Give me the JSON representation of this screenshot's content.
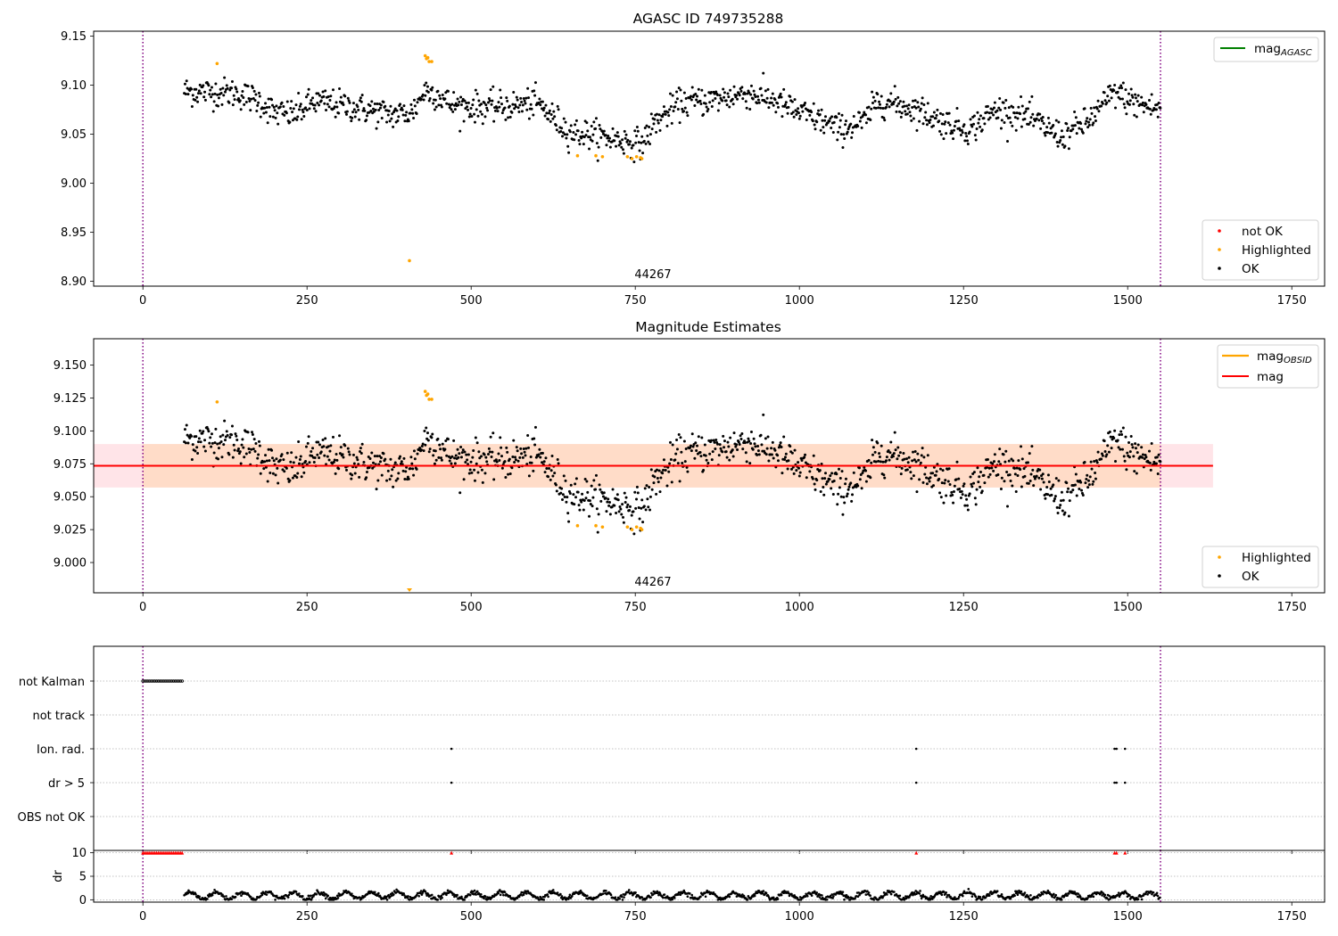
{
  "colors": {
    "ok": "#000000",
    "not_ok": "#ff0000",
    "highlighted": "#ffa500",
    "mag_agasc": "#008000",
    "mag_obsid": "#ffa500",
    "mag": "#ff0000",
    "obs_boundary": "#800080",
    "band_outer": "#ffe4e8",
    "band_inner": "#ffdcc8"
  },
  "panels": {
    "top": {
      "title": "AGASC ID 749735288",
      "obsid_label": "44267",
      "legend_top": [
        "mag_{AGASC}"
      ],
      "legend_bottom": [
        "not OK",
        "Highlighted",
        "OK"
      ]
    },
    "middle": {
      "title": "Magnitude Estimates",
      "obsid_label": "44267",
      "legend_top": [
        "mag_{OBSID}",
        "mag"
      ],
      "legend_bottom": [
        "Highlighted",
        "OK"
      ]
    },
    "bottom": {
      "flag_labels": [
        "not Kalman",
        "not track",
        "Ion. rad.",
        "dr > 5",
        "OBS not OK"
      ],
      "dr_ylabel": "dr"
    }
  },
  "chart_data": [
    {
      "type": "scatter",
      "title": "AGASC ID 749735288",
      "xlim": [
        -75,
        1800
      ],
      "ylim": [
        8.895,
        9.155
      ],
      "x_ticks": [
        0,
        250,
        500,
        750,
        1000,
        1250,
        1500,
        1750
      ],
      "y_ticks": [
        8.9,
        8.95,
        9.0,
        9.05,
        9.1,
        9.15
      ],
      "obsid_bounds": [
        0,
        1550
      ],
      "obsid": "44267",
      "series": [
        {
          "name": "OK",
          "x_range": [
            63,
            1550
          ],
          "trend": [
            [
              63,
              9.094
            ],
            [
              100,
              9.093
            ],
            [
              140,
              9.092
            ],
            [
              175,
              9.085
            ],
            [
              200,
              9.072
            ],
            [
              230,
              9.07
            ],
            [
              260,
              9.083
            ],
            [
              300,
              9.08
            ],
            [
              340,
              9.075
            ],
            [
              380,
              9.07
            ],
            [
              410,
              9.072
            ],
            [
              430,
              9.095
            ],
            [
              450,
              9.09
            ],
            [
              470,
              9.08
            ],
            [
              500,
              9.078
            ],
            [
              550,
              9.078
            ],
            [
              600,
              9.082
            ],
            [
              620,
              9.07
            ],
            [
              650,
              9.052
            ],
            [
              680,
              9.05
            ],
            [
              720,
              9.045
            ],
            [
              760,
              9.04
            ],
            [
              780,
              9.062
            ],
            [
              820,
              9.082
            ],
            [
              870,
              9.085
            ],
            [
              920,
              9.092
            ],
            [
              960,
              9.085
            ],
            [
              1000,
              9.072
            ],
            [
              1030,
              9.065
            ],
            [
              1060,
              9.055
            ],
            [
              1100,
              9.063
            ],
            [
              1120,
              9.085
            ],
            [
              1150,
              9.08
            ],
            [
              1180,
              9.075
            ],
            [
              1220,
              9.062
            ],
            [
              1260,
              9.055
            ],
            [
              1300,
              9.075
            ],
            [
              1340,
              9.07
            ],
            [
              1380,
              9.055
            ],
            [
              1400,
              9.048
            ],
            [
              1440,
              9.063
            ],
            [
              1480,
              9.093
            ],
            [
              1510,
              9.082
            ],
            [
              1550,
              9.075
            ]
          ]
        },
        {
          "name": "Highlighted",
          "points": [
            [
              113,
              9.122
            ],
            [
              406,
              8.921
            ],
            [
              430,
              9.13
            ],
            [
              432,
              9.127
            ],
            [
              434,
              9.128
            ],
            [
              436,
              9.124
            ],
            [
              440,
              9.124
            ],
            [
              662,
              9.028
            ],
            [
              690,
              9.028
            ],
            [
              700,
              9.027
            ],
            [
              738,
              9.027
            ],
            [
              745,
              9.025
            ],
            [
              752,
              9.027
            ],
            [
              758,
              9.026
            ],
            [
              760,
              9.025
            ]
          ]
        },
        {
          "name": "not OK",
          "points": []
        }
      ]
    },
    {
      "type": "scatter",
      "title": "Magnitude Estimates",
      "xlim": [
        -75,
        1800
      ],
      "ylim": [
        8.977,
        9.17
      ],
      "x_ticks": [
        0,
        250,
        500,
        750,
        1000,
        1250,
        1500,
        1750
      ],
      "y_ticks": [
        9.0,
        9.025,
        9.05,
        9.075,
        9.1,
        9.125,
        9.15
      ],
      "obsid_bounds": [
        0,
        1550
      ],
      "obsid": "44267",
      "lines": {
        "mag": {
          "x": [
            -75,
            1630
          ],
          "y": 9.0735
        },
        "mag_obsid": {
          "x": [
            0,
            1550
          ],
          "y": 9.0735
        },
        "band_outer": {
          "x": [
            -75,
            1630
          ],
          "y": [
            9.057,
            9.09
          ]
        },
        "band_inner": {
          "x": [
            0,
            1550
          ],
          "y": [
            9.057,
            9.09
          ]
        }
      },
      "series": [
        {
          "name": "OK",
          "same_as": "panel 1 OK series"
        },
        {
          "name": "Highlighted",
          "points": [
            [
              113,
              9.122
            ],
            [
              406,
              8.978
            ],
            [
              430,
              9.13
            ],
            [
              432,
              9.127
            ],
            [
              434,
              9.128
            ],
            [
              436,
              9.124
            ],
            [
              440,
              9.124
            ],
            [
              662,
              9.028
            ],
            [
              690,
              9.028
            ],
            [
              700,
              9.027
            ],
            [
              738,
              9.027
            ],
            [
              745,
              9.025
            ],
            [
              752,
              9.027
            ],
            [
              758,
              9.026
            ],
            [
              760,
              9.025
            ]
          ]
        }
      ]
    },
    {
      "type": "scatter",
      "title": "",
      "xlim": [
        -75,
        1800
      ],
      "x_ticks": [
        0,
        250,
        500,
        750,
        1000,
        1250,
        1500,
        1750
      ],
      "categories": [
        "not Kalman",
        "not track",
        "Ion. rad.",
        "dr > 5",
        "OBS not OK"
      ],
      "flags": {
        "not Kalman": [
          [
            0,
            60
          ]
        ],
        "not track": [],
        "Ion. rad.": [
          470,
          1178,
          1480,
          1483,
          1496
        ],
        "dr > 5": [
          470,
          1178,
          1480,
          1483,
          1496
        ],
        "OBS not OK": []
      }
    },
    {
      "type": "scatter",
      "title": "",
      "ylabel": "dr",
      "xlim": [
        -75,
        1800
      ],
      "ylim": [
        -0.5,
        10.5
      ],
      "x_ticks": [
        0,
        250,
        500,
        750,
        1000,
        1250,
        1500,
        1750
      ],
      "y_ticks": [
        0,
        5,
        10
      ],
      "series": [
        {
          "name": "dr",
          "x_range": [
            63,
            1550
          ],
          "y_range": [
            0,
            2.5
          ]
        },
        {
          "name": "dr (clipped)",
          "y": 10,
          "x_range": [
            0,
            60
          ],
          "extra_x": [
            470,
            1178,
            1480,
            1483,
            1496
          ]
        }
      ]
    }
  ]
}
